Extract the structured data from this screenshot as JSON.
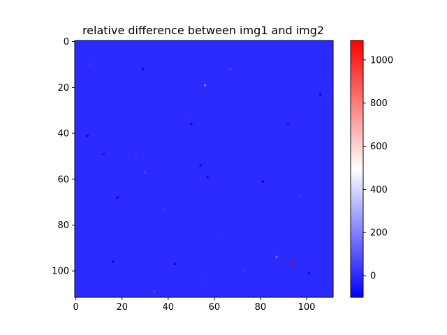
{
  "chart_data": {
    "type": "heatmap",
    "title": "relative difference between img1 and img2",
    "xlabel": "",
    "ylabel": "",
    "grid": false,
    "xlim": [
      -0.5,
      111.5
    ],
    "ylim": [
      111.5,
      -0.5
    ],
    "x_ticks": [
      0,
      20,
      40,
      60,
      80,
      100
    ],
    "y_ticks": [
      0,
      20,
      40,
      60,
      80,
      100
    ],
    "colormap": "bwr",
    "colorbar": {
      "min": -100,
      "max": 1090,
      "ticks": [
        0,
        200,
        400,
        600,
        800,
        1000
      ],
      "placement": "right"
    },
    "background_value": 0,
    "points": [
      {
        "x": 94,
        "y": 97,
        "value": 1080
      },
      {
        "x": 56,
        "y": 19,
        "value": 180
      },
      {
        "x": 87,
        "y": 94,
        "value": 140
      },
      {
        "x": 29,
        "y": 12,
        "value": -90
      },
      {
        "x": 5,
        "y": 41,
        "value": -95
      },
      {
        "x": 50,
        "y": 36,
        "value": -85
      },
      {
        "x": 18,
        "y": 68,
        "value": -90
      },
      {
        "x": 43,
        "y": 97,
        "value": -95
      },
      {
        "x": 16,
        "y": 96,
        "value": -85
      },
      {
        "x": 54,
        "y": 54,
        "value": -80
      },
      {
        "x": 57,
        "y": 59,
        "value": -80
      },
      {
        "x": 81,
        "y": 61,
        "value": -85
      },
      {
        "x": 106,
        "y": 23,
        "value": -80
      },
      {
        "x": 101,
        "y": 101,
        "value": -75
      },
      {
        "x": 12,
        "y": 49,
        "value": -60
      },
      {
        "x": 92,
        "y": 36,
        "value": -60
      },
      {
        "x": 30,
        "y": 57,
        "value": 60
      },
      {
        "x": 34,
        "y": 109,
        "value": 50
      },
      {
        "x": 67,
        "y": 12,
        "value": 40
      },
      {
        "x": 6,
        "y": 10,
        "value": 30
      },
      {
        "x": 26,
        "y": 49,
        "value": 30
      },
      {
        "x": 38,
        "y": 73,
        "value": 25
      },
      {
        "x": 97,
        "y": 67,
        "value": 30
      },
      {
        "x": 73,
        "y": 100,
        "value": 25
      },
      {
        "x": 55,
        "y": 104,
        "value": 30
      },
      {
        "x": 63,
        "y": 84,
        "value": 20
      },
      {
        "x": 48,
        "y": 31,
        "value": 20
      }
    ]
  }
}
